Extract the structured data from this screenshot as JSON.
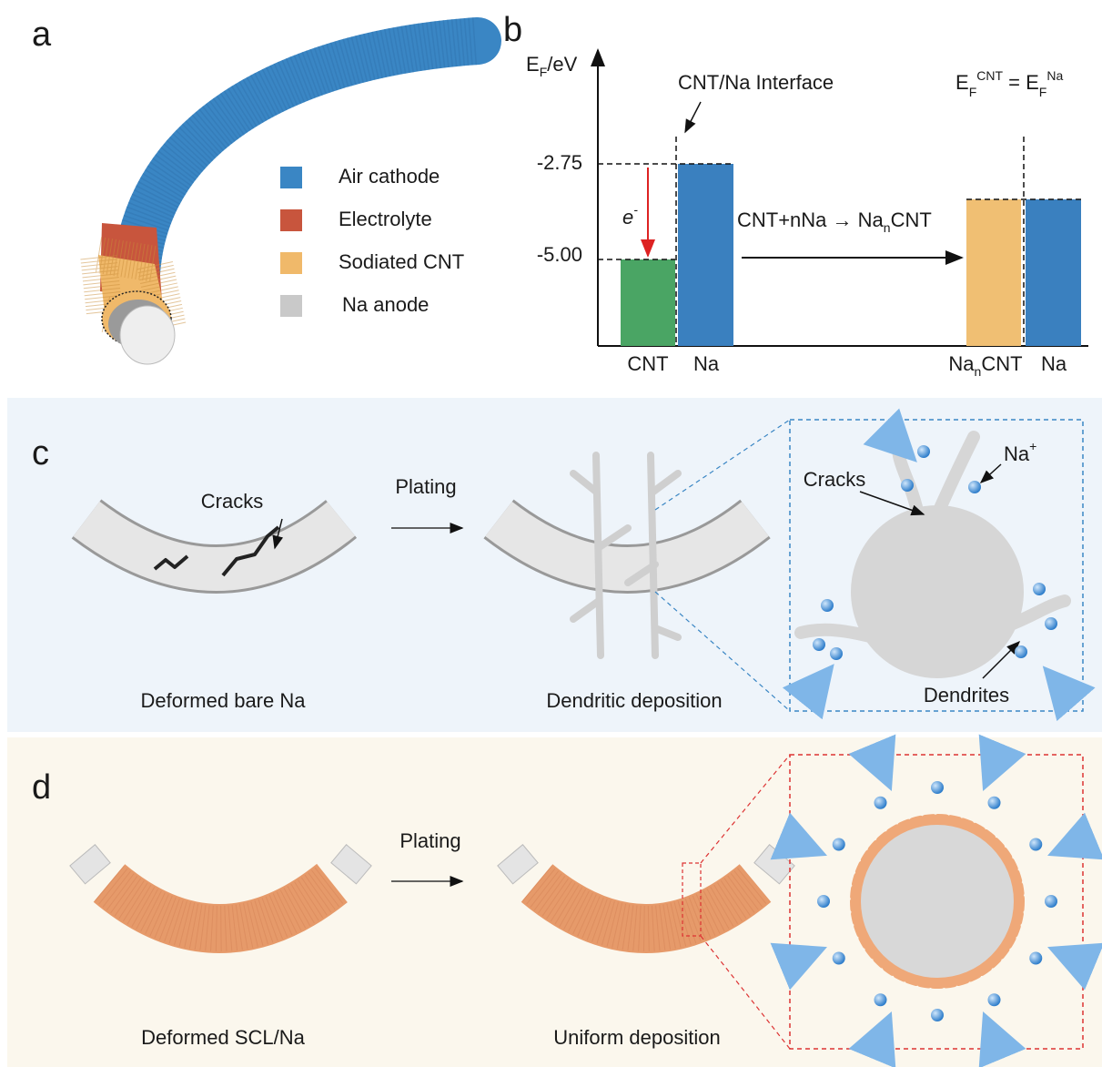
{
  "panels": {
    "a": {
      "label": "a",
      "legend": [
        {
          "name": "Air cathode",
          "color": "#3a86c4"
        },
        {
          "name": "Electrolyte",
          "color": "#c8553d"
        },
        {
          "name": "Sodiated CNT",
          "color": "#f0b96a"
        },
        {
          "name": "Na anode",
          "color": "#c9c9c9"
        }
      ]
    },
    "b": {
      "label": "b",
      "y_axis_label": [
        "E",
        "F",
        "/eV"
      ],
      "interface_label": "CNT/Na Interface",
      "equation": [
        "E",
        "F",
        "CNT",
        " = E",
        "F",
        "Na"
      ],
      "levels": [
        "-2.75",
        "-5.00"
      ],
      "electron": [
        "e",
        "-"
      ],
      "reaction": [
        "CNT+nNa → Na",
        "n",
        "CNT"
      ],
      "bar_labels": {
        "cnt": "CNT",
        "na": "Na",
        "nancnt": [
          "Na",
          "n",
          "CNT"
        ],
        "na2": "Na"
      },
      "colors": {
        "cnt": "#4aa564",
        "na": "#3a80bf",
        "nancnt": "#f0bf73"
      }
    },
    "c": {
      "label": "c",
      "cracks": "Cracks",
      "plating": "Plating",
      "caption_left": "Deformed bare Na",
      "caption_right": "Dendritic deposition",
      "inset_cracks": "Cracks",
      "inset_ion": [
        "Na",
        "+"
      ],
      "inset_dendrites": "Dendrites"
    },
    "d": {
      "label": "d",
      "plating": "Plating",
      "caption_left": "Deformed SCL/Na",
      "caption_right": "Uniform deposition"
    }
  }
}
